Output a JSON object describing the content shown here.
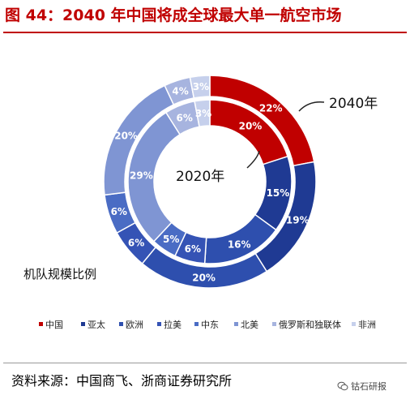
{
  "title": "图 44：2040 年中国将成全球最大单一航空市场",
  "source": "资料来源：中国商飞、浙商证券研究所",
  "watermark": "钴石研报",
  "chart_data": {
    "type": "pie",
    "style": "nested donut",
    "subtitle_label": "机队规模比例",
    "legend_position": "bottom",
    "categories": [
      "中国",
      "亚太",
      "欧洲",
      "拉美",
      "中东",
      "北美",
      "俄罗斯和独联体",
      "非洲"
    ],
    "colors": [
      "#c00000",
      "#1f3a93",
      "#2e4fae",
      "#3553b5",
      "#4a6cc4",
      "#7f95d3",
      "#a7b4df",
      "#c6d0ec"
    ],
    "series": [
      {
        "name": "2040年",
        "ring": "outer",
        "values": [
          22,
          19,
          20,
          6,
          6,
          20,
          4,
          3
        ]
      },
      {
        "name": "2020年",
        "ring": "inner",
        "values": [
          20,
          15,
          16,
          6,
          5,
          29,
          6,
          3
        ]
      }
    ]
  }
}
